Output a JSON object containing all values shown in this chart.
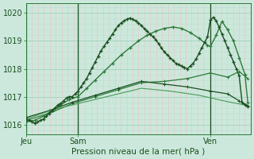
{
  "bg_color": "#cce8dc",
  "grid_color_major": "#a8d4c0",
  "grid_color_minor": "#bce0cc",
  "pink_grid_color": "#e8c8c8",
  "dark_green": "#1a5020",
  "mid_green": "#2d7a3a",
  "light_green": "#4a9a5a",
  "xlabel": "Pression niveau de la mer( hPa )",
  "xtick_labels": [
    "Jeu",
    "Sam",
    "Ven"
  ],
  "xtick_positions": [
    0,
    18,
    64
  ],
  "ytick_labels": [
    "1016",
    "1017",
    "1018",
    "1019",
    "1020"
  ],
  "ytick_positions": [
    1016,
    1017,
    1018,
    1019,
    1020
  ],
  "ylim": [
    1015.65,
    1020.35
  ],
  "xlim": [
    0,
    78
  ],
  "n_vertical": 39,
  "series1_x": [
    0,
    1,
    2,
    3,
    4,
    5,
    6,
    7,
    8,
    9,
    10,
    11,
    12,
    13,
    14,
    15,
    16,
    17,
    18,
    19,
    20,
    21,
    22,
    23,
    24,
    25,
    26,
    27,
    28,
    29,
    30,
    31,
    32,
    33,
    34,
    35,
    36,
    37,
    38,
    39,
    40,
    41,
    42,
    43,
    44,
    45,
    46,
    47,
    48,
    49,
    50,
    51,
    52,
    53,
    54,
    55,
    56,
    57,
    58,
    59,
    60,
    61,
    62,
    63,
    64,
    65,
    66,
    67,
    68,
    69,
    70,
    71,
    72,
    73,
    74,
    75,
    76,
    77
  ],
  "series1_y": [
    1016.2,
    1016.15,
    1016.1,
    1016.05,
    1016.1,
    1016.15,
    1016.2,
    1016.3,
    1016.4,
    1016.5,
    1016.6,
    1016.7,
    1016.75,
    1016.85,
    1016.95,
    1017.0,
    1017.0,
    1017.1,
    1017.2,
    1017.35,
    1017.5,
    1017.65,
    1017.85,
    1018.05,
    1018.25,
    1018.45,
    1018.65,
    1018.8,
    1018.95,
    1019.1,
    1019.25,
    1019.4,
    1019.55,
    1019.65,
    1019.72,
    1019.78,
    1019.82,
    1019.78,
    1019.72,
    1019.65,
    1019.55,
    1019.45,
    1019.35,
    1019.25,
    1019.15,
    1019.05,
    1018.9,
    1018.75,
    1018.6,
    1018.5,
    1018.4,
    1018.3,
    1018.2,
    1018.15,
    1018.1,
    1018.05,
    1018.0,
    1018.1,
    1018.2,
    1018.35,
    1018.55,
    1018.75,
    1018.95,
    1019.15,
    1019.75,
    1019.85,
    1019.72,
    1019.5,
    1019.25,
    1019.0,
    1018.75,
    1018.5,
    1018.25,
    1018.0,
    1017.75,
    1016.8,
    1016.7,
    1016.65
  ],
  "series2_x": [
    0,
    3,
    6,
    9,
    12,
    15,
    18,
    21,
    24,
    27,
    30,
    33,
    36,
    39,
    42,
    45,
    48,
    51,
    54,
    57,
    60,
    63,
    64,
    66,
    68,
    70,
    72,
    74,
    76,
    77
  ],
  "series2_y": [
    1016.1,
    1016.15,
    1016.3,
    1016.5,
    1016.7,
    1016.9,
    1017.0,
    1017.3,
    1017.6,
    1017.9,
    1018.2,
    1018.5,
    1018.75,
    1019.0,
    1019.2,
    1019.35,
    1019.45,
    1019.5,
    1019.45,
    1019.3,
    1019.1,
    1018.85,
    1018.8,
    1019.2,
    1019.7,
    1019.4,
    1019.0,
    1018.4,
    1017.8,
    1016.8
  ],
  "series3_x": [
    0,
    8,
    16,
    24,
    32,
    40,
    48,
    56,
    64,
    70,
    74,
    77
  ],
  "series3_y": [
    1016.15,
    1016.4,
    1016.75,
    1017.0,
    1017.25,
    1017.5,
    1017.55,
    1017.65,
    1017.85,
    1017.7,
    1017.9,
    1017.65
  ],
  "series4_x": [
    0,
    8,
    16,
    24,
    32,
    40,
    48,
    56,
    64,
    70,
    74,
    77
  ],
  "series4_y": [
    1016.25,
    1016.5,
    1016.8,
    1017.05,
    1017.3,
    1017.55,
    1017.45,
    1017.35,
    1017.2,
    1017.1,
    1016.85,
    1016.68
  ],
  "series5_x": [
    0,
    10,
    20,
    30,
    40,
    50,
    60,
    70,
    77
  ],
  "series5_y": [
    1016.2,
    1016.55,
    1016.8,
    1017.05,
    1017.3,
    1017.2,
    1017.05,
    1016.82,
    1016.68
  ]
}
